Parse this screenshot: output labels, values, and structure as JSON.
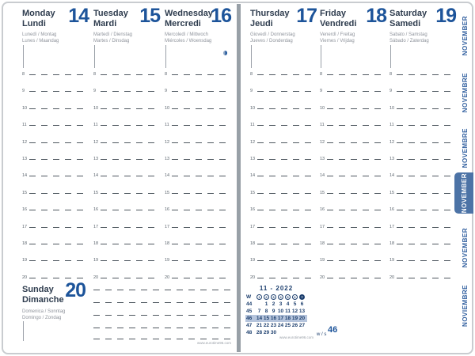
{
  "planner": {
    "week_label": "w / s",
    "week_number": "46",
    "website_left": "www.eurotime96.com",
    "website_right": "www.eurotime96.com"
  },
  "hours": [
    "8",
    "9",
    "10",
    "11",
    "12",
    "13",
    "14",
    "15",
    "16",
    "17",
    "18",
    "19",
    "20"
  ],
  "days": [
    {
      "id": "monday",
      "name": "Monday",
      "name_fr": "Lundi",
      "alt1": "Lunedì / Montag",
      "alt2": "Lunes / Maandag",
      "date": "14"
    },
    {
      "id": "tuesday",
      "name": "Tuesday",
      "name_fr": "Mardi",
      "alt1": "Martedì / Dienstag",
      "alt2": "Martes / Dinsdag",
      "date": "15"
    },
    {
      "id": "wednesday",
      "name": "Wednesday",
      "name_fr": "Mercredi",
      "alt1": "Mercoledì / Mittwoch",
      "alt2": "Miércoles / Woensdag",
      "date": "16"
    },
    {
      "id": "thursday",
      "name": "Thursday",
      "name_fr": "Jeudi",
      "alt1": "Giovedì / Donnerstag",
      "alt2": "Jueves / Donderdag",
      "date": "17"
    },
    {
      "id": "friday",
      "name": "Friday",
      "name_fr": "Vendredi",
      "alt1": "Venerdì / Freitag",
      "alt2": "Viernes / Vrijdag",
      "date": "18"
    },
    {
      "id": "saturday",
      "name": "Saturday",
      "name_fr": "Samedi",
      "alt1": "Sabato / Samstag",
      "alt2": "Sábado / Zaterdag",
      "date": "19"
    }
  ],
  "sunday": {
    "name": "Sunday",
    "name_fr": "Dimanche",
    "alt1": "Domenica / Sonntag",
    "alt2": "Domingo / Zondag",
    "date": "20"
  },
  "month_tabs": [
    {
      "label": "NOVEMBER",
      "active": false
    },
    {
      "label": "NOVEMBRE",
      "active": false
    },
    {
      "label": "NOVEMBRE",
      "active": false
    },
    {
      "label": "NOVEMBER",
      "active": true
    },
    {
      "label": "NOVEMBER",
      "active": false
    },
    {
      "label": "NOVIEMBRE",
      "active": false
    }
  ],
  "mini_calendar": {
    "title": "11 - 2022",
    "week_col_header": "W",
    "day_headers": [
      "1",
      "2",
      "3",
      "4",
      "5",
      "6",
      "7"
    ],
    "weeks": [
      {
        "num": "44",
        "days": [
          "",
          "1",
          "2",
          "3",
          "4",
          "5",
          "6"
        ],
        "current": false
      },
      {
        "num": "45",
        "days": [
          "7",
          "8",
          "9",
          "10",
          "11",
          "12",
          "13"
        ],
        "current": false
      },
      {
        "num": "46",
        "days": [
          "14",
          "15",
          "16",
          "17",
          "18",
          "19",
          "20"
        ],
        "current": true
      },
      {
        "num": "47",
        "days": [
          "21",
          "22",
          "23",
          "24",
          "25",
          "26",
          "27"
        ],
        "current": false
      },
      {
        "num": "48",
        "days": [
          "28",
          "29",
          "30",
          "",
          "",
          "",
          ""
        ],
        "current": false
      }
    ]
  },
  "icons": {
    "moon_phase": "last-quarter-moon"
  },
  "colors": {
    "date_blue": "#1d549a",
    "navy": "#2e3c4e",
    "calendar_navy": "#1d3f6e",
    "tab_active_bg": "#4c73a6",
    "highlight_row": "#b5c4dc"
  }
}
